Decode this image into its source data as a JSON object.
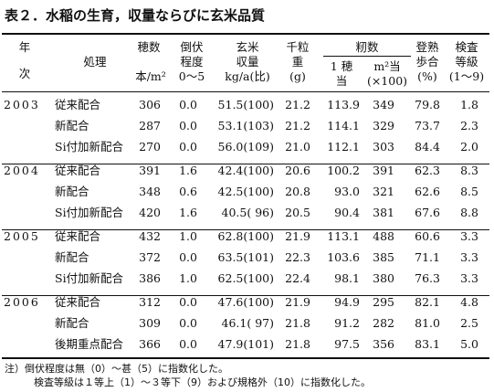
{
  "title": "表２．水稲の生育，収量ならびに玄米品質",
  "headers": {
    "year_1": "年",
    "year_2": "次",
    "treatment": "処理",
    "panicles_1": "穂数",
    "panicles_2": "本/m²",
    "lodging_1": "倒伏",
    "lodging_2": "程度",
    "lodging_3": "0～5",
    "brown_rice_1": "玄米",
    "brown_rice_2": "収量",
    "brown_rice_3": "kg/a(比)",
    "grain_weight_1": "千粒",
    "grain_weight_2": "重",
    "grain_weight_3": "(g)",
    "spikelets": "籾数",
    "per_panicle_1": "1 穂",
    "per_panicle_2": "当",
    "per_m2_1": "m²当",
    "per_m2_2": "(×100)",
    "ripening_1": "登熟",
    "ripening_2": "歩合",
    "ripening_3": "(%)",
    "grade_1": "検査",
    "grade_2": "等級",
    "grade_3": "(1～9)"
  },
  "groups": [
    {
      "year": "2003",
      "rows": [
        {
          "treatment": "従来配合",
          "panicles": "306",
          "lodging": "0.0",
          "yield": "51.5(100)",
          "grain_weight": "21.2",
          "per_panicle": "113.9",
          "per_m2": "349",
          "ripening": "79.8",
          "grade": "1.8"
        },
        {
          "treatment": "新配合",
          "panicles": "287",
          "lodging": "0.0",
          "yield": "53.1(103)",
          "grain_weight": "21.2",
          "per_panicle": "114.1",
          "per_m2": "329",
          "ripening": "73.7",
          "grade": "2.3"
        },
        {
          "treatment": "Si付加新配合",
          "panicles": "270",
          "lodging": "0.0",
          "yield": "56.0(109)",
          "grain_weight": "21.0",
          "per_panicle": "112.1",
          "per_m2": "303",
          "ripening": "84.4",
          "grade": "2.0"
        }
      ]
    },
    {
      "year": "2004",
      "rows": [
        {
          "treatment": "従来配合",
          "panicles": "391",
          "lodging": "1.6",
          "yield": "42.4(100)",
          "grain_weight": "20.6",
          "per_panicle": "100.2",
          "per_m2": "391",
          "ripening": "62.3",
          "grade": "8.3"
        },
        {
          "treatment": "新配合",
          "panicles": "348",
          "lodging": "0.6",
          "yield": "42.5(100)",
          "grain_weight": "20.8",
          "per_panicle": "93.0",
          "per_m2": "321",
          "ripening": "62.6",
          "grade": "8.5"
        },
        {
          "treatment": "Si付加新配合",
          "panicles": "420",
          "lodging": "1.6",
          "yield": "40.5( 96)",
          "grain_weight": "20.5",
          "per_panicle": "90.4",
          "per_m2": "381",
          "ripening": "67.6",
          "grade": "8.8"
        }
      ]
    },
    {
      "year": "2005",
      "rows": [
        {
          "treatment": "従来配合",
          "panicles": "432",
          "lodging": "1.0",
          "yield": "62.8(100)",
          "grain_weight": "21.9",
          "per_panicle": "113.1",
          "per_m2": "488",
          "ripening": "60.6",
          "grade": "3.3"
        },
        {
          "treatment": "新配合",
          "panicles": "372",
          "lodging": "0.0",
          "yield": "63.5(101)",
          "grain_weight": "22.3",
          "per_panicle": "103.6",
          "per_m2": "385",
          "ripening": "71.1",
          "grade": "3.3"
        },
        {
          "treatment": "Si付加新配合",
          "panicles": "386",
          "lodging": "1.0",
          "yield": "62.5(100)",
          "grain_weight": "22.4",
          "per_panicle": "98.1",
          "per_m2": "380",
          "ripening": "76.3",
          "grade": "3.3"
        }
      ]
    },
    {
      "year": "2006",
      "rows": [
        {
          "treatment": "従来配合",
          "panicles": "312",
          "lodging": "0.0",
          "yield": "47.6(100)",
          "grain_weight": "21.9",
          "per_panicle": "94.9",
          "per_m2": "295",
          "ripening": "82.1",
          "grade": "4.8"
        },
        {
          "treatment": "新配合",
          "panicles": "309",
          "lodging": "0.0",
          "yield": "46.1( 97)",
          "grain_weight": "21.8",
          "per_panicle": "91.2",
          "per_m2": "282",
          "ripening": "81.0",
          "grade": "2.5"
        },
        {
          "treatment": "後期重点配合",
          "panicles": "366",
          "lodging": "0.0",
          "yield": "47.9(101)",
          "grain_weight": "21.8",
          "per_panicle": "97.5",
          "per_m2": "356",
          "ripening": "83.1",
          "grade": "5.0"
        }
      ]
    }
  ],
  "notes": [
    "注）倒伏程度は無（0）～甚（5）に指数化した。",
    "検査等級は１等上（1）～３等下（9）および規格外（10）に指数化した。"
  ]
}
